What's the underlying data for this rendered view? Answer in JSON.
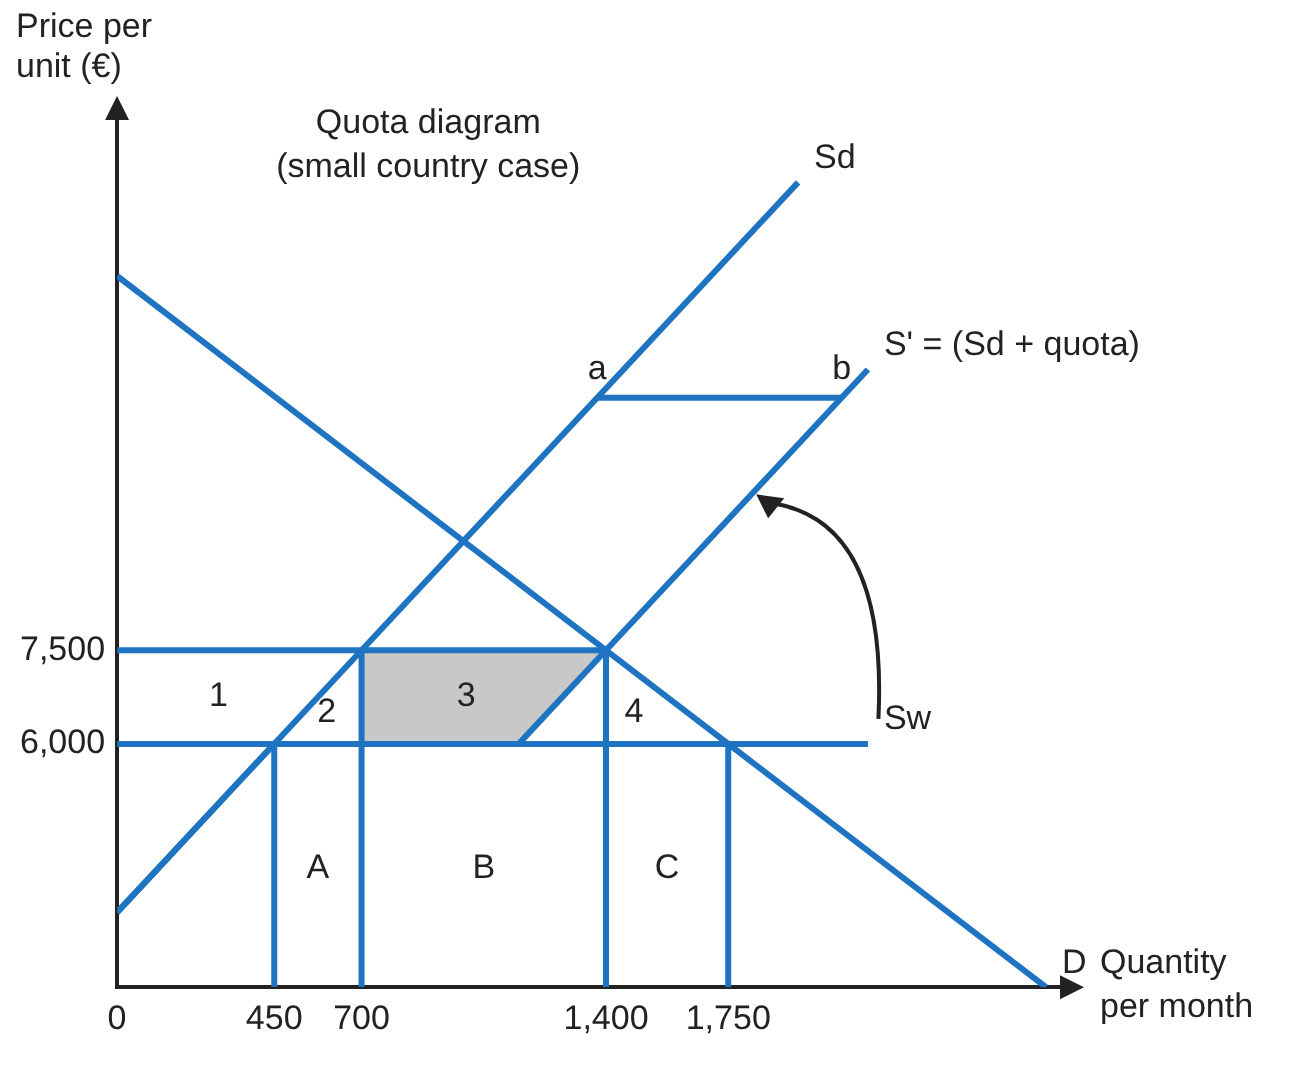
{
  "chart_data": {
    "type": "line",
    "title": "Quota diagram",
    "subtitle": "(small country case)",
    "xlabel": "Quantity per month",
    "ylabel": "Price per unit (€)",
    "xlim": [
      0,
      2700
    ],
    "ylim": [
      2100,
      16000
    ],
    "xticks": [
      0,
      450,
      700,
      {
        "value": 1400,
        "label": "1,400"
      },
      {
        "value": 1750,
        "label": "1,750"
      }
    ],
    "yticks": [
      {
        "value": 6000,
        "label": "6,000"
      },
      {
        "value": 7500,
        "label": "7,500"
      }
    ],
    "grid": false,
    "legend": false,
    "marker": "none",
    "line_style": "solid",
    "series": [
      {
        "type": "area",
        "color": "#c8c8c8",
        "x": [
          700,
          700,
          1400,
          1150,
          700
        ],
        "values": [
          6000,
          7500,
          7500,
          6000,
          6000
        ]
      },
      {
        "name": "Sd",
        "color": "#1f74c2",
        "x": [
          0,
          1950
        ],
        "values": [
          3300,
          15000
        ]
      },
      {
        "name": "D",
        "color": "#1f74c2",
        "x": [
          0,
          2660
        ],
        "values": [
          13500,
          2100
        ]
      },
      {
        "name": "S' = (Sd + quota)",
        "color": "#1f74c2",
        "x": [
          0,
          450,
          1150,
          1400,
          2150
        ],
        "values": [
          3300,
          6000,
          6000,
          7500,
          12000
        ]
      },
      {
        "name": "Sw",
        "color": "#1f74c2",
        "x": [
          0,
          2150
        ],
        "values": [
          6000,
          6000
        ]
      },
      {
        "color": "#1f74c2",
        "x": [
          0,
          1400
        ],
        "values": [
          7500,
          7500
        ]
      },
      {
        "color": "#1f74c2",
        "x": [
          1375,
          2075
        ],
        "values": [
          11550,
          11550
        ]
      },
      {
        "color": "#1f74c2",
        "x": [
          450,
          450
        ],
        "values": [
          2100,
          6000
        ]
      },
      {
        "color": "#1f74c2",
        "x": [
          700,
          700
        ],
        "values": [
          2100,
          7500
        ]
      },
      {
        "color": "#1f74c2",
        "x": [
          1400,
          1400
        ],
        "values": [
          2100,
          7500
        ]
      },
      {
        "color": "#1f74c2",
        "x": [
          1750,
          1750
        ],
        "values": [
          2100,
          6000
        ]
      }
    ],
    "annotations": [
      {
        "text": "a",
        "x": 1375,
        "y": 11550
      },
      {
        "text": "b",
        "x": 2075,
        "y": 11550
      },
      "1",
      "2",
      "3",
      "4",
      "A",
      "B",
      "C"
    ]
  }
}
